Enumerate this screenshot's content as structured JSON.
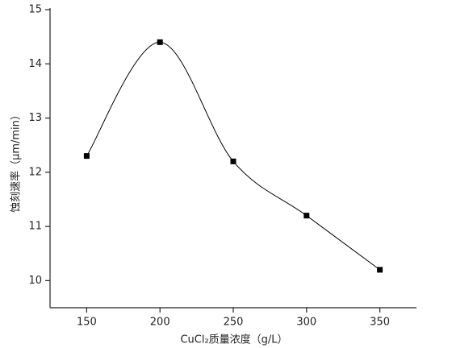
{
  "chart_data": {
    "type": "line",
    "x_label": "CuCl₂质量浓度（g/L）",
    "y_label": "蚀刻速率（μm/min）",
    "x": [
      150,
      200,
      250,
      300,
      350
    ],
    "series": [
      {
        "name": null,
        "color": "#000000",
        "values": [
          12.3,
          14.4,
          12.2,
          11.2,
          10.2
        ]
      }
    ],
    "xlim": [
      125,
      375
    ],
    "xticks": [
      150,
      200,
      250,
      300,
      350
    ],
    "ylim": [
      9.5,
      15
    ],
    "yticks": [
      10,
      11,
      12,
      13,
      14,
      15
    ],
    "grid": false,
    "smooth": true
  }
}
